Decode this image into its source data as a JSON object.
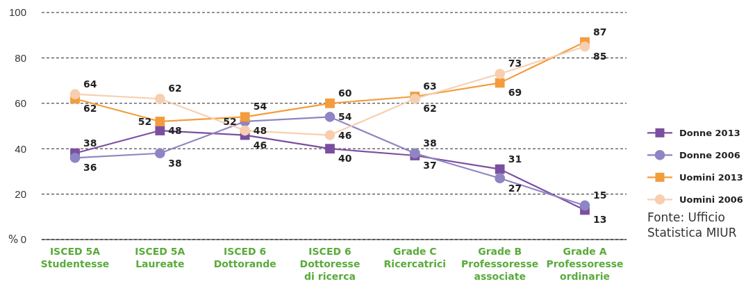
{
  "chart_data": {
    "type": "line",
    "categories": [
      "ISCED 5A\nStudentesse",
      "ISCED 5A\nLaureate",
      "ISCED 6\nDottorande",
      "ISCED 6\nDottoresse\ndi ricerca",
      "Grade C\nRicercatrici",
      "Grade B\nProfessoresse\nassociate",
      "Grade A\nProfessoresse\nordinarie"
    ],
    "ylabel": "%",
    "ylim": [
      0,
      100
    ],
    "yticks": [
      0,
      20,
      40,
      60,
      80,
      100
    ],
    "grid": "y",
    "legend": "right",
    "data_labels": true,
    "series": [
      {
        "name": "Donne 2013",
        "color": "#7b4fa0",
        "marker": "square",
        "values": [
          38,
          48,
          46,
          40,
          37,
          31,
          13
        ]
      },
      {
        "name": "Donne 2006",
        "color": "#8e85c4",
        "marker": "circle",
        "values": [
          36,
          38,
          52,
          54,
          38,
          27,
          15
        ]
      },
      {
        "name": "Uomini 2013",
        "color": "#f39c3c",
        "marker": "square",
        "values": [
          62,
          52,
          54,
          60,
          63,
          69,
          87
        ]
      },
      {
        "name": "Uomini 2006",
        "color": "#f7cfb0",
        "marker": "circle",
        "values": [
          64,
          62,
          48,
          46,
          62,
          73,
          85
        ]
      }
    ],
    "annotations": [
      "Fonte: Ufficio\nStatistica MIUR"
    ]
  }
}
